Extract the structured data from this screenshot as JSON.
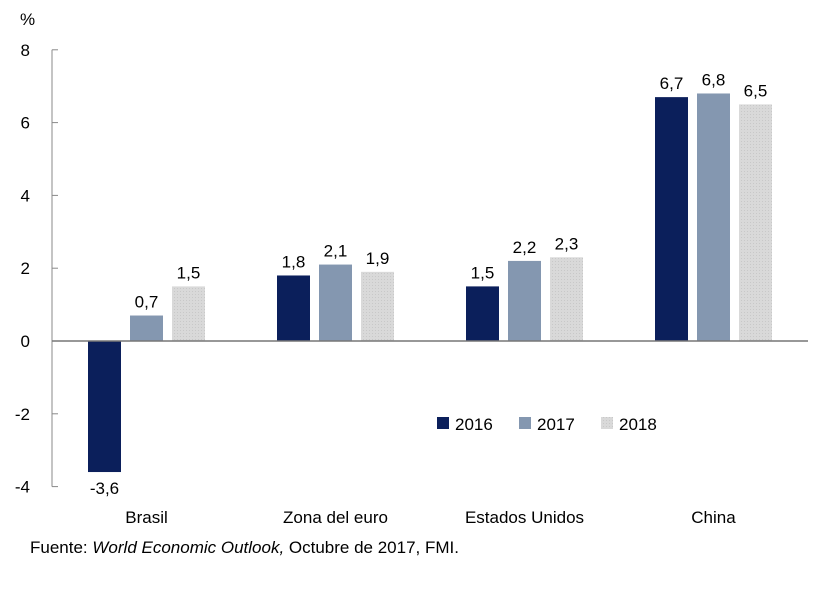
{
  "chart_data": {
    "type": "bar",
    "ylabel": "%",
    "ylim": [
      -4,
      8
    ],
    "yticks": [
      -4,
      -2,
      0,
      2,
      4,
      6,
      8
    ],
    "categories": [
      "Brasil",
      "Zona del euro",
      "Estados Unidos",
      "China"
    ],
    "series": [
      {
        "name": "2016",
        "color": "#0b1f5b",
        "values": [
          -3.6,
          1.8,
          1.5,
          6.7
        ],
        "labels": [
          "-3,6",
          "1,8",
          "1,5",
          "6,7"
        ]
      },
      {
        "name": "2017",
        "color": "#8497b0",
        "values": [
          0.7,
          2.1,
          2.2,
          6.8
        ],
        "labels": [
          "0,7",
          "2,1",
          "2,2",
          "6,8"
        ]
      },
      {
        "name": "2018",
        "color": "#d9d9d9",
        "values": [
          1.5,
          1.9,
          2.3,
          6.5
        ],
        "labels": [
          "1,5",
          "1,9",
          "2,3",
          "6,5"
        ]
      }
    ],
    "legend_position": "center-right",
    "grid": false
  },
  "source": {
    "prefix": "Fuente: ",
    "title": "World Economic Outlook,",
    "suffix": " Octubre de 2017, FMI."
  }
}
